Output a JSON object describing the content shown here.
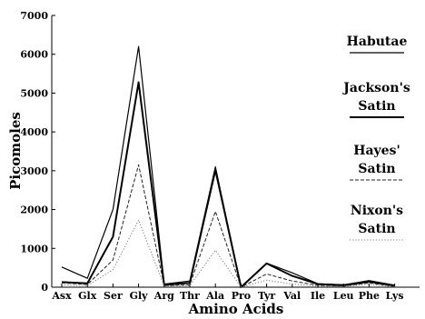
{
  "chart_data": {
    "type": "line",
    "title": "",
    "xlabel": "Amino Acids",
    "ylabel": "Picomoles",
    "categories": [
      "Asx",
      "Glx",
      "Ser",
      "Gly",
      "Arg",
      "Thr",
      "Ala",
      "Pro",
      "Tyr",
      "Val",
      "Ile",
      "Leu",
      "Phe",
      "Lys"
    ],
    "ylim": [
      0,
      7000
    ],
    "yticks": [
      0,
      1000,
      2000,
      3000,
      4000,
      5000,
      6000,
      7000
    ],
    "grid": false,
    "legend_position": "right",
    "series": [
      {
        "name": "Habutae",
        "color": "#000000",
        "style": "solid",
        "width": 1.2,
        "values": [
          520,
          230,
          2000,
          6200,
          80,
          160,
          3100,
          0,
          620,
          370,
          90,
          60,
          170,
          50
        ]
      },
      {
        "name": "Jackson's Satin",
        "color": "#000000",
        "style": "solid",
        "width": 2.0,
        "values": [
          130,
          100,
          1300,
          5280,
          60,
          110,
          3020,
          0,
          610,
          290,
          80,
          50,
          140,
          40
        ]
      },
      {
        "name": "Hayes' Satin",
        "color": "#222222",
        "style": "dashed",
        "width": 1.0,
        "values": [
          110,
          70,
          700,
          3150,
          40,
          60,
          1950,
          0,
          340,
          160,
          50,
          30,
          110,
          20
        ]
      },
      {
        "name": "Nixon's Satin",
        "color": "#777777",
        "style": "dotted",
        "width": 1.0,
        "values": [
          60,
          40,
          450,
          1730,
          30,
          40,
          950,
          0,
          180,
          80,
          30,
          20,
          70,
          10
        ]
      }
    ]
  }
}
